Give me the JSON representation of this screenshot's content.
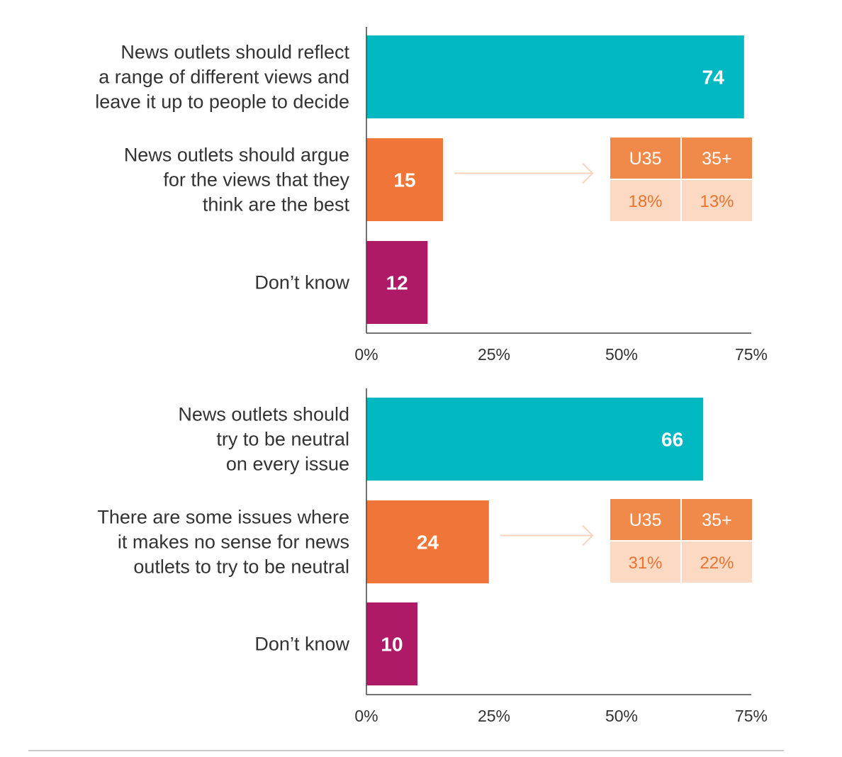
{
  "colors": {
    "teal": "#00B8C2",
    "orange": "#F07539",
    "magenta": "#AE1A66",
    "box_header": "#F08A4B",
    "box_cell": "#FBD9C2",
    "box_value_text": "#E8742F",
    "arrow": "#F9D3BB",
    "axis": "#444444",
    "divider": "#BBBBBB"
  },
  "chart_data": [
    {
      "type": "bar",
      "orientation": "horizontal",
      "categories": [
        [
          "News outlets should reflect",
          "a range of different views and",
          "leave it up to people to decide"
        ],
        [
          "News outlets should argue",
          "for the views that they",
          "think are the best"
        ],
        [
          "Don’t know"
        ]
      ],
      "values": [
        74,
        15,
        12
      ],
      "bar_colors": [
        "teal",
        "orange",
        "magenta"
      ],
      "xlim": [
        0,
        75
      ],
      "xticks": [
        "0%",
        "25%",
        "50%",
        "75%"
      ],
      "breakdown": {
        "category_index": 1,
        "headers": [
          "U35",
          "35+"
        ],
        "values": [
          "18%",
          "13%"
        ]
      }
    },
    {
      "type": "bar",
      "orientation": "horizontal",
      "categories": [
        [
          "News outlets should",
          "try to be neutral",
          "on every issue"
        ],
        [
          "There are some issues where",
          "it makes no sense for news",
          "outlets to try to be neutral"
        ],
        [
          "Don’t know"
        ]
      ],
      "values": [
        66,
        24,
        10
      ],
      "bar_colors": [
        "teal",
        "orange",
        "magenta"
      ],
      "xlim": [
        0,
        75
      ],
      "xticks": [
        "0%",
        "25%",
        "50%",
        "75%"
      ],
      "breakdown": {
        "category_index": 1,
        "headers": [
          "U35",
          "35+"
        ],
        "values": [
          "31%",
          "22%"
        ]
      }
    }
  ]
}
